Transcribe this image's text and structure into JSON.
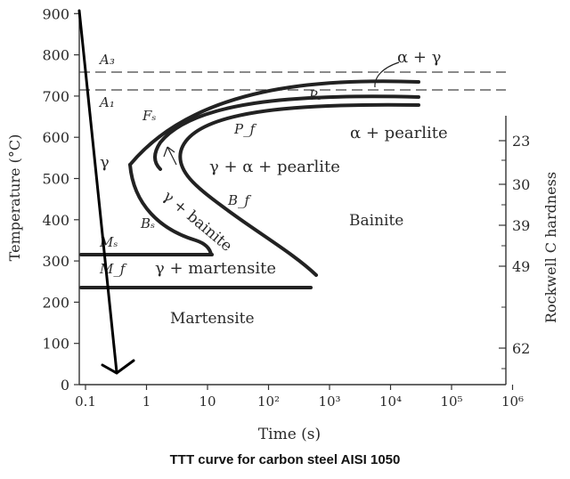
{
  "caption": "TTT curve for carbon steel AISI 1050",
  "axes": {
    "xlabel": "Time (s)",
    "ylabel": "Temperature (°C)",
    "right_label": "Rockwell C hardness",
    "x_ticks": [
      "0.1",
      "1",
      "10",
      "10²",
      "10³",
      "10⁴",
      "10⁵",
      "10⁶"
    ],
    "y_ticks": [
      "0",
      "100",
      "200",
      "300",
      "400",
      "500",
      "600",
      "700",
      "800",
      "900"
    ],
    "hardness_ticks": [
      "23",
      "30",
      "39",
      "49",
      "62"
    ]
  },
  "labels": {
    "A3": "A₃",
    "A1": "A₁",
    "alpha_gamma": "α + γ",
    "Ps": "Pₛ",
    "Fs": "Fₛ",
    "Pf": "P_f",
    "alpha_pearlite": "α + pearlite",
    "gamma": "γ",
    "gamma_alpha_pearlite": "γ + α + pearlite",
    "Bf": "B_f",
    "gamma_bainite": "γ + bainite",
    "Bs": "Bₛ",
    "bainite": "Bainite",
    "Ms": "Mₛ",
    "Mf": "M_f",
    "gamma_martensite": "γ + martensite",
    "martensite": "Martensite"
  },
  "colors": {
    "curve": "#222222",
    "arrow": "#000000",
    "axis": "#333333"
  }
}
